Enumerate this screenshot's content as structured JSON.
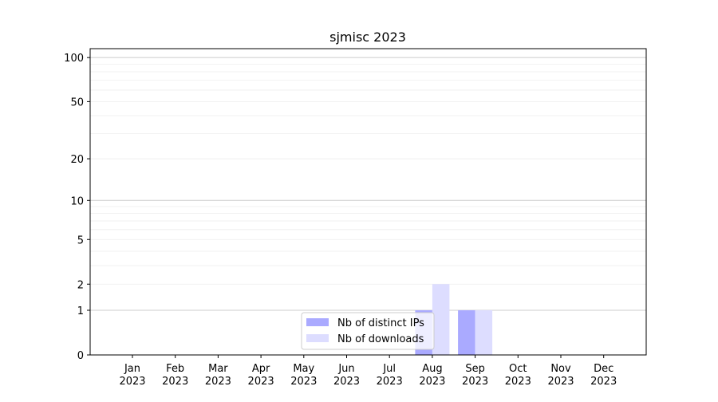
{
  "chart_data": {
    "type": "bar",
    "title": "sjmisc 2023",
    "xlabel": "",
    "ylabel": "",
    "yscale": "log(1+y)",
    "ylim": [
      0,
      115
    ],
    "yticks": [
      0,
      1,
      2,
      5,
      10,
      20,
      50,
      100
    ],
    "categories": [
      "Jan\n2023",
      "Feb\n2023",
      "Mar\n2023",
      "Apr\n2023",
      "May\n2023",
      "Jun\n2023",
      "Jul\n2023",
      "Aug\n2023",
      "Sep\n2023",
      "Oct\n2023",
      "Nov\n2023",
      "Dec\n2023"
    ],
    "series": [
      {
        "name": "Nb of distinct IPs",
        "color": "#aaaaff",
        "values": [
          0,
          0,
          0,
          0,
          0,
          0,
          0,
          1,
          1,
          0,
          0,
          0
        ]
      },
      {
        "name": "Nb of downloads",
        "color": "#ddddff",
        "values": [
          0,
          0,
          0,
          0,
          0,
          0,
          0,
          2,
          1,
          0,
          0,
          0
        ]
      }
    ],
    "grid": true,
    "legend": "lower-center"
  }
}
